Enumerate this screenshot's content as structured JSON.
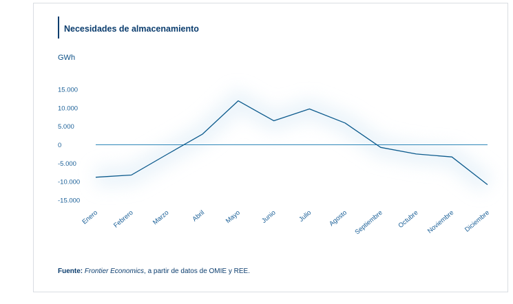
{
  "chart_data": {
    "type": "line",
    "title": "Necesidades de almacenamiento",
    "ylabel": "GWh",
    "xlabel": "",
    "categories": [
      "Enero",
      "Febrero",
      "Marzo",
      "Abril",
      "Mayo",
      "Junio",
      "Julio",
      "Agosto",
      "Septiembre",
      "Octubre",
      "Noviembre",
      "Diciembre"
    ],
    "series": [
      {
        "values": [
          -8800,
          -8200,
          -2600,
          2900,
          11900,
          6500,
          9700,
          5900,
          -700,
          -2500,
          -3300,
          -10800
        ]
      }
    ],
    "yticks": [
      15000,
      10000,
      5000,
      0,
      -5000,
      -10000,
      -15000
    ],
    "ytick_labels": [
      "15.000",
      "10.000",
      "5.000",
      "0",
      "-5.000",
      "-10.000",
      "-15.000"
    ],
    "ylim": [
      -15000,
      15000
    ],
    "grid": false,
    "zero_line": true,
    "colors": {
      "line": "#0b5a8c",
      "zero_line": "#2d86b8",
      "text": "#0b3d6e",
      "tick": "#1a5f97"
    }
  },
  "source": {
    "label": "Fuente:",
    "org": "Frontier Economics",
    "rest": ", a partir de datos de OMIE y REE."
  }
}
